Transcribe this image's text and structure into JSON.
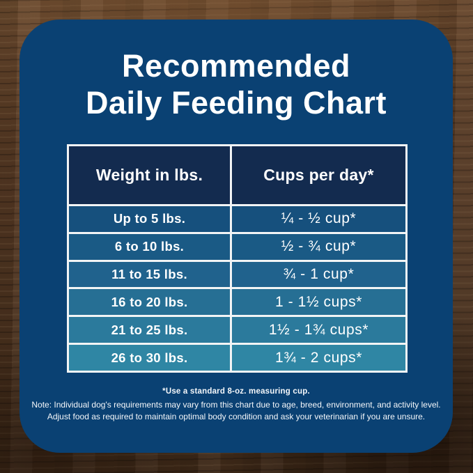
{
  "title": {
    "line1": "Recommended",
    "line2": "Daily Feeding Chart"
  },
  "table": {
    "headers": [
      "Weight in lbs.",
      "Cups per day*"
    ],
    "header_bg": "#132b4f",
    "rows": [
      {
        "weight": "Up to 5 lbs.",
        "cups": "¼ - ½ cup*",
        "color": "#16507d"
      },
      {
        "weight": "6 to 10 lbs.",
        "cups": "½ - ¾ cup*",
        "color": "#1a5a85"
      },
      {
        "weight": "11 to 15 lbs.",
        "cups": "¾ - 1 cup*",
        "color": "#20628d"
      },
      {
        "weight": "16 to 20 lbs.",
        "cups": "1 - 1½ cups*",
        "color": "#266f94"
      },
      {
        "weight": "21 to 25 lbs.",
        "cups": "1½ - 1¾ cups*",
        "color": "#2b7a9c"
      },
      {
        "weight": "26 to 30 lbs.",
        "cups": "1¾ - 2 cups*",
        "color": "#2f86a4"
      }
    ]
  },
  "footnotes": {
    "line1": "*Use a standard 8-oz. measuring cup.",
    "line2": "Note: Individual dog's requirements may vary from this chart due to age, breed, environment, and activity level.",
    "line3": "Adjust food as required to maintain optimal body condition and ask your veterinarian if you are unsure."
  },
  "colors": {
    "panel": "#0a4173",
    "table_border": "#f2f4f5",
    "text": "#ffffff",
    "wood_base": "#5a3c26"
  },
  "chart_data": {
    "type": "table",
    "title": "Recommended Daily Feeding Chart",
    "columns": [
      "Weight in lbs.",
      "Cups per day*"
    ],
    "rows": [
      [
        "Up to 5 lbs.",
        "¼ - ½ cup*"
      ],
      [
        "6 to 10 lbs.",
        "½ - ¾ cup*"
      ],
      [
        "11 to 15 lbs.",
        "¾ - 1 cup*"
      ],
      [
        "16 to 20 lbs.",
        "1 - 1½ cups*"
      ],
      [
        "21 to 25 lbs.",
        "1½ - 1¾ cups*"
      ],
      [
        "26 to 30 lbs.",
        "1¾ - 2 cups*"
      ]
    ],
    "notes": [
      "*Use a standard 8-oz. measuring cup.",
      "Note: Individual dog's requirements may vary from this chart due to age, breed, environment, and activity level. Adjust food as required to maintain optimal body condition and ask your veterinarian if you are unsure."
    ]
  }
}
